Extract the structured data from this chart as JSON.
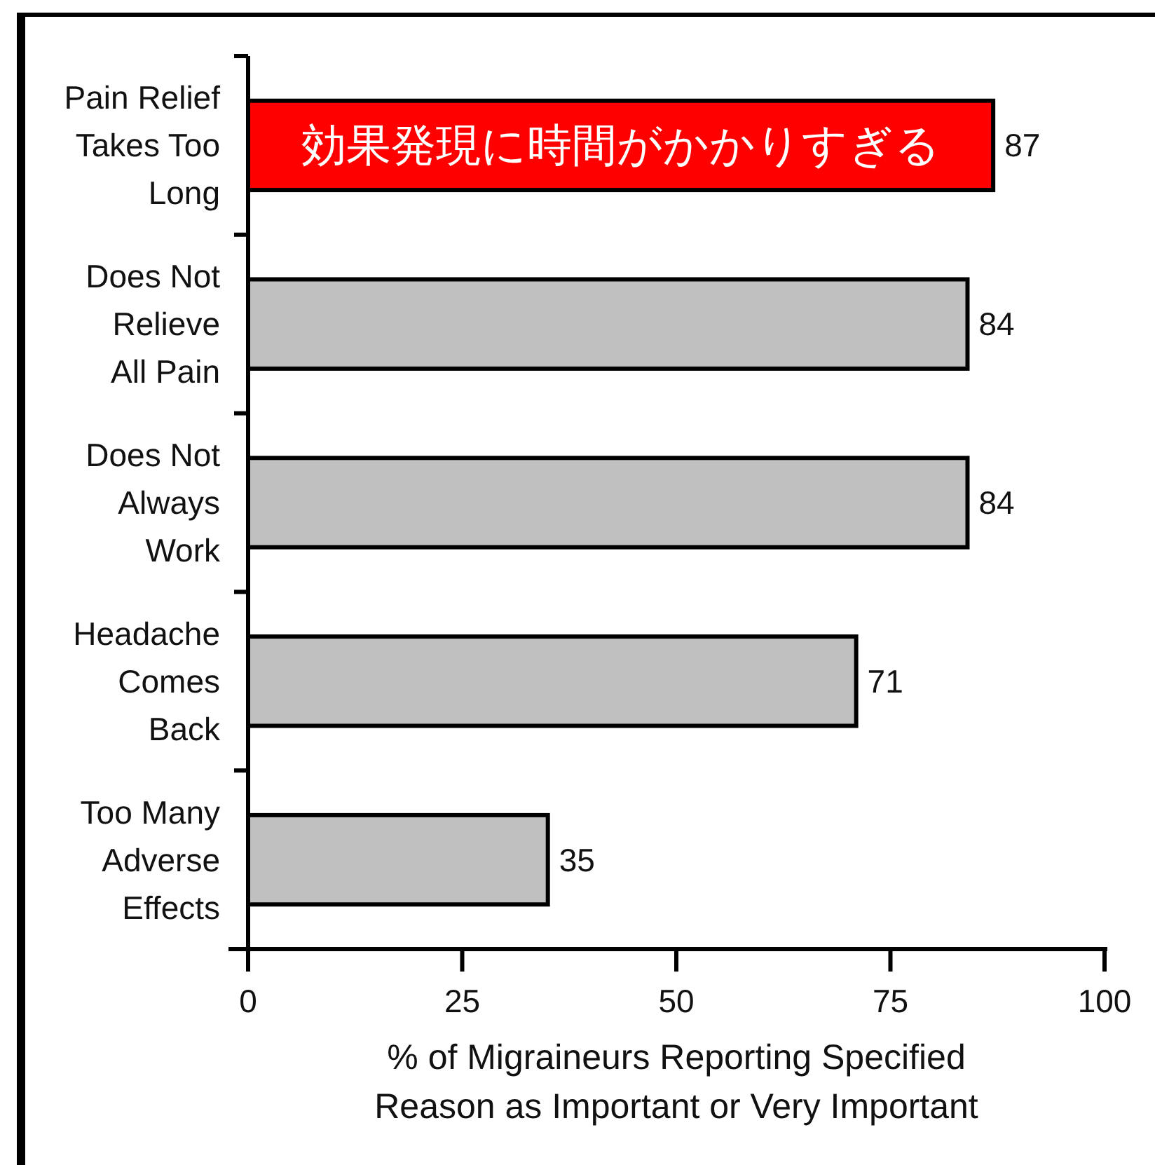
{
  "chart_data": {
    "type": "bar",
    "orientation": "horizontal",
    "categories": [
      "Pain Relief\nTakes Too\nLong",
      "Does Not\nRelieve\nAll Pain",
      "Does Not\nAlways\nWork",
      "Headache\nComes\nBack",
      "Too Many\nAdverse\nEffects"
    ],
    "values": [
      87,
      84,
      84,
      71,
      35
    ],
    "colors": [
      "#ff0000",
      "#c0c0c0",
      "#c0c0c0",
      "#c0c0c0",
      "#c0c0c0"
    ],
    "xlim": [
      0,
      100
    ],
    "xticks": [
      0,
      25,
      50,
      75,
      100
    ],
    "xlabel": "% of Migraineurs Reporting Specified\nReason as Important or Very Important",
    "data_labels": true,
    "annotations": [
      "効果発現に時間がかかりすぎる"
    ]
  }
}
